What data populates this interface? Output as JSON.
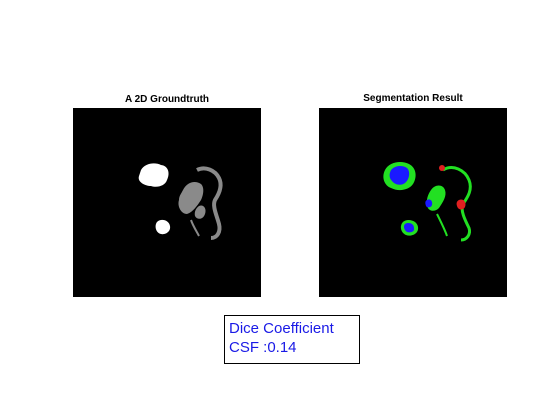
{
  "panels": {
    "left": {
      "title": "A 2D Groundtruth"
    },
    "right": {
      "title": "Segmentation Result"
    }
  },
  "result": {
    "line1": "Dice Coefficient",
    "line2": "CSF :0.14"
  },
  "colors": {
    "background": "#000000",
    "groundtruth_white": "#ffffff",
    "groundtruth_gray": "#8a8a8a",
    "seg_blue": "#1a1aff",
    "seg_green": "#22e022",
    "seg_red": "#e02020",
    "text_blue": "#1a1ae6"
  }
}
